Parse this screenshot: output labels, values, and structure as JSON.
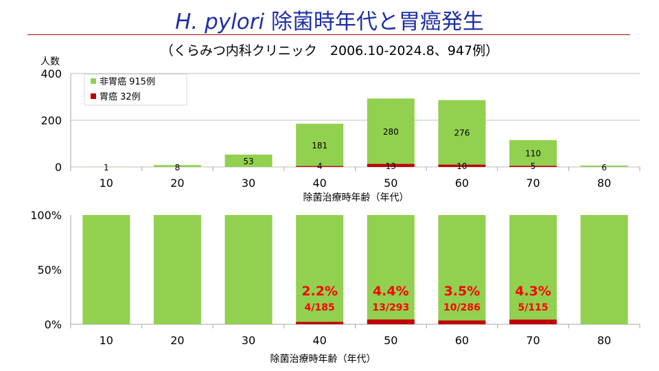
{
  "slide": {
    "title_italic": "H. pylori",
    "title_rest": " 除菌時年代と胃癌発生",
    "subtitle": "（くらみつ内科クリニック　2006.10-2024.8、947例）"
  },
  "colors": {
    "non_cancer": "#92d050",
    "cancer": "#c00000",
    "title": "#1f2fa6",
    "rate_text": "#ff0000"
  },
  "chart_data": [
    {
      "type": "bar",
      "stacked": true,
      "categories": [
        "10",
        "20",
        "30",
        "40",
        "50",
        "60",
        "70",
        "80"
      ],
      "series": [
        {
          "name": "胃癌 32例",
          "values": [
            0,
            0,
            0,
            4,
            13,
            10,
            5,
            0
          ],
          "labels": [
            "",
            "",
            "",
            "4",
            "13",
            "10",
            "5",
            ""
          ]
        },
        {
          "name": "非胃癌 915例",
          "values": [
            1,
            8,
            53,
            181,
            280,
            276,
            110,
            6
          ],
          "labels": [
            "1",
            "8",
            "53",
            "181",
            "280",
            "276",
            "110",
            "6"
          ]
        }
      ],
      "ylabel": "人数",
      "xlabel": "除菌治療時年齢（年代）",
      "ylim": [
        0,
        400
      ],
      "yticks": [
        "0",
        "200",
        "400"
      ],
      "grid": true,
      "legend": "top-left"
    },
    {
      "type": "bar",
      "stacked": true,
      "percent": true,
      "categories": [
        "10",
        "20",
        "30",
        "40",
        "50",
        "60",
        "70",
        "80"
      ],
      "series": [
        {
          "name": "胃癌",
          "values": [
            0,
            0,
            0,
            2.2,
            4.4,
            3.5,
            4.3,
            0
          ]
        },
        {
          "name": "非胃癌",
          "values": [
            100,
            100,
            100,
            97.8,
            95.6,
            96.5,
            95.7,
            100
          ]
        }
      ],
      "annotations": [
        {
          "category": "40",
          "rate": "2.2%",
          "ratio": "4/185"
        },
        {
          "category": "50",
          "rate": "4.4%",
          "ratio": "13/293"
        },
        {
          "category": "60",
          "rate": "3.5%",
          "ratio": "10/286"
        },
        {
          "category": "70",
          "rate": "4.3%",
          "ratio": "5/115"
        }
      ],
      "xlabel": "除菌治療時年齢（年代）",
      "ylim": [
        0,
        100
      ],
      "yticks": [
        "0%",
        "50%",
        "100%"
      ],
      "grid": false
    }
  ]
}
